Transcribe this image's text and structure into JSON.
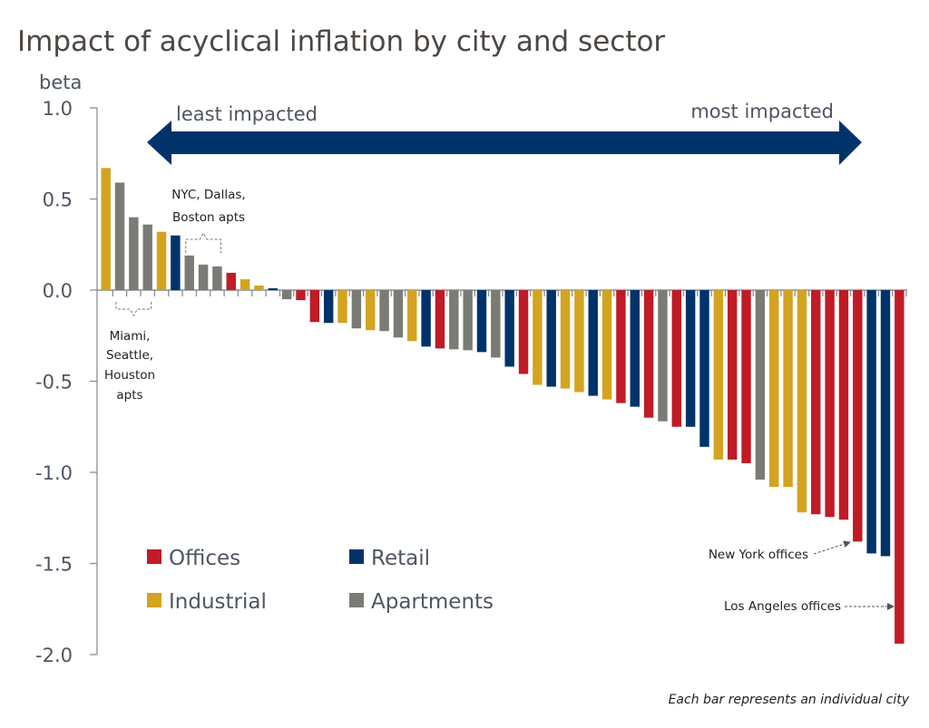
{
  "colors": {
    "Offices": "#c01b26",
    "Retail": "#00336a",
    "Industrial": "#d4a320",
    "Apartments": "#7b7b76",
    "arrow": "#00336a",
    "axis": "#8a8f96",
    "text": "#4e5661"
  },
  "chart_data": {
    "type": "bar",
    "title": "Impact of acyclical inflation by city and sector",
    "xlabel": "",
    "ylabel": "beta",
    "ylim": [
      -2.0,
      1.0
    ],
    "yticks": [
      1.0,
      0.5,
      0.0,
      -0.5,
      -1.0,
      -1.5,
      -2.0
    ],
    "ytick_labels": [
      "1.0",
      "0.5",
      "0.0",
      "-0.5",
      "-1.0",
      "-1.5",
      "-2.0"
    ],
    "grid": false,
    "legend": {
      "placement": "bottom-left",
      "entries": [
        "Offices",
        "Retail",
        "Industrial",
        "Apartments"
      ]
    },
    "arrow": {
      "left_label": "least impacted",
      "right_label": "most impacted"
    },
    "annotations": [
      {
        "text_lines": [
          "NYC, Dallas,",
          "Boston apts"
        ],
        "bars": [
          7,
          9
        ]
      },
      {
        "text_lines": [
          "Miami,",
          "Seattle,",
          "Houston",
          "apts"
        ],
        "bars": [
          2,
          4
        ]
      },
      {
        "text": "New York offices",
        "bar": 55
      },
      {
        "text": "Los Angeles offices",
        "bar": 58
      }
    ],
    "footnote": "Each bar represents an individual city",
    "bars": [
      {
        "sector": "Industrial",
        "value": 0.67
      },
      {
        "sector": "Apartments",
        "value": 0.59
      },
      {
        "sector": "Apartments",
        "value": 0.4
      },
      {
        "sector": "Apartments",
        "value": 0.36
      },
      {
        "sector": "Industrial",
        "value": 0.32
      },
      {
        "sector": "Retail",
        "value": 0.3
      },
      {
        "sector": "Apartments",
        "value": 0.19
      },
      {
        "sector": "Apartments",
        "value": 0.14
      },
      {
        "sector": "Apartments",
        "value": 0.13
      },
      {
        "sector": "Offices",
        "value": 0.095
      },
      {
        "sector": "Industrial",
        "value": 0.06
      },
      {
        "sector": "Industrial",
        "value": 0.025
      },
      {
        "sector": "Retail",
        "value": 0.01
      },
      {
        "sector": "Apartments",
        "value": -0.05
      },
      {
        "sector": "Offices",
        "value": -0.055
      },
      {
        "sector": "Offices",
        "value": -0.175
      },
      {
        "sector": "Retail",
        "value": -0.18
      },
      {
        "sector": "Industrial",
        "value": -0.18
      },
      {
        "sector": "Apartments",
        "value": -0.21
      },
      {
        "sector": "Industrial",
        "value": -0.22
      },
      {
        "sector": "Apartments",
        "value": -0.225
      },
      {
        "sector": "Apartments",
        "value": -0.26
      },
      {
        "sector": "Industrial",
        "value": -0.28
      },
      {
        "sector": "Retail",
        "value": -0.31
      },
      {
        "sector": "Offices",
        "value": -0.32
      },
      {
        "sector": "Apartments",
        "value": -0.325
      },
      {
        "sector": "Apartments",
        "value": -0.33
      },
      {
        "sector": "Retail",
        "value": -0.34
      },
      {
        "sector": "Apartments",
        "value": -0.37
      },
      {
        "sector": "Retail",
        "value": -0.42
      },
      {
        "sector": "Offices",
        "value": -0.46
      },
      {
        "sector": "Industrial",
        "value": -0.52
      },
      {
        "sector": "Retail",
        "value": -0.53
      },
      {
        "sector": "Industrial",
        "value": -0.54
      },
      {
        "sector": "Industrial",
        "value": -0.56
      },
      {
        "sector": "Retail",
        "value": -0.58
      },
      {
        "sector": "Industrial",
        "value": -0.6
      },
      {
        "sector": "Offices",
        "value": -0.62
      },
      {
        "sector": "Retail",
        "value": -0.64
      },
      {
        "sector": "Offices",
        "value": -0.7
      },
      {
        "sector": "Apartments",
        "value": -0.72
      },
      {
        "sector": "Offices",
        "value": -0.75
      },
      {
        "sector": "Retail",
        "value": -0.75
      },
      {
        "sector": "Retail",
        "value": -0.86
      },
      {
        "sector": "Industrial",
        "value": -0.93
      },
      {
        "sector": "Offices",
        "value": -0.93
      },
      {
        "sector": "Offices",
        "value": -0.95
      },
      {
        "sector": "Apartments",
        "value": -1.04
      },
      {
        "sector": "Industrial",
        "value": -1.08
      },
      {
        "sector": "Industrial",
        "value": -1.08
      },
      {
        "sector": "Industrial",
        "value": -1.22
      },
      {
        "sector": "Offices",
        "value": -1.23
      },
      {
        "sector": "Offices",
        "value": -1.245
      },
      {
        "sector": "Offices",
        "value": -1.26
      },
      {
        "sector": "Offices",
        "value": -1.38
      },
      {
        "sector": "Retail",
        "value": -1.445
      },
      {
        "sector": "Retail",
        "value": -1.46
      },
      {
        "sector": "Offices",
        "value": -1.94
      }
    ]
  }
}
